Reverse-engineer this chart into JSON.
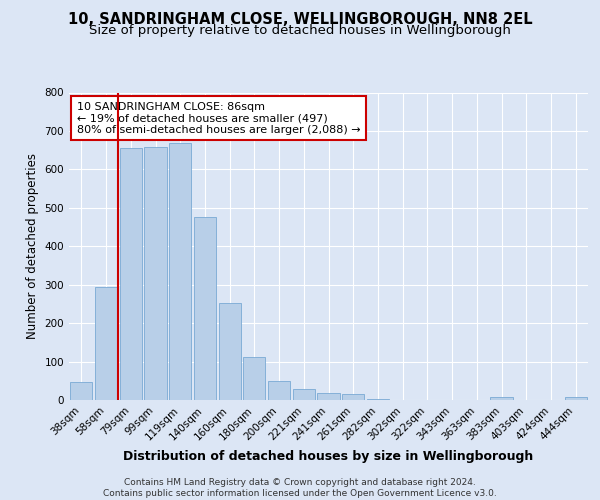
{
  "title1": "10, SANDRINGHAM CLOSE, WELLINGBOROUGH, NN8 2EL",
  "title2": "Size of property relative to detached houses in Wellingborough",
  "xlabel": "Distribution of detached houses by size in Wellingborough",
  "ylabel": "Number of detached properties",
  "categories": [
    "38sqm",
    "58sqm",
    "79sqm",
    "99sqm",
    "119sqm",
    "140sqm",
    "160sqm",
    "180sqm",
    "200sqm",
    "221sqm",
    "241sqm",
    "261sqm",
    "282sqm",
    "302sqm",
    "322sqm",
    "343sqm",
    "363sqm",
    "383sqm",
    "403sqm",
    "424sqm",
    "444sqm"
  ],
  "values": [
    47,
    295,
    655,
    658,
    668,
    477,
    253,
    113,
    50,
    28,
    17,
    15,
    3,
    1,
    1,
    1,
    0,
    8,
    1,
    0,
    8
  ],
  "bar_color": "#b8cfe8",
  "bar_edge_color": "#7aaad4",
  "vline_x_index": 1.5,
  "vline_color": "#cc0000",
  "annotation_text": "10 SANDRINGHAM CLOSE: 86sqm\n← 19% of detached houses are smaller (497)\n80% of semi-detached houses are larger (2,088) →",
  "annotation_box_color": "#ffffff",
  "annotation_box_edgecolor": "#cc0000",
  "bg_color": "#dce6f5",
  "plot_bg_color": "#dce6f5",
  "grid_color": "#ffffff",
  "footer_text": "Contains HM Land Registry data © Crown copyright and database right 2024.\nContains public sector information licensed under the Open Government Licence v3.0.",
  "ylim": [
    0,
    800
  ],
  "yticks": [
    0,
    100,
    200,
    300,
    400,
    500,
    600,
    700,
    800
  ],
  "title1_fontsize": 10.5,
  "title2_fontsize": 9.5,
  "xlabel_fontsize": 9,
  "ylabel_fontsize": 8.5,
  "tick_fontsize": 7.5,
  "annotation_fontsize": 8,
  "footer_fontsize": 6.5
}
